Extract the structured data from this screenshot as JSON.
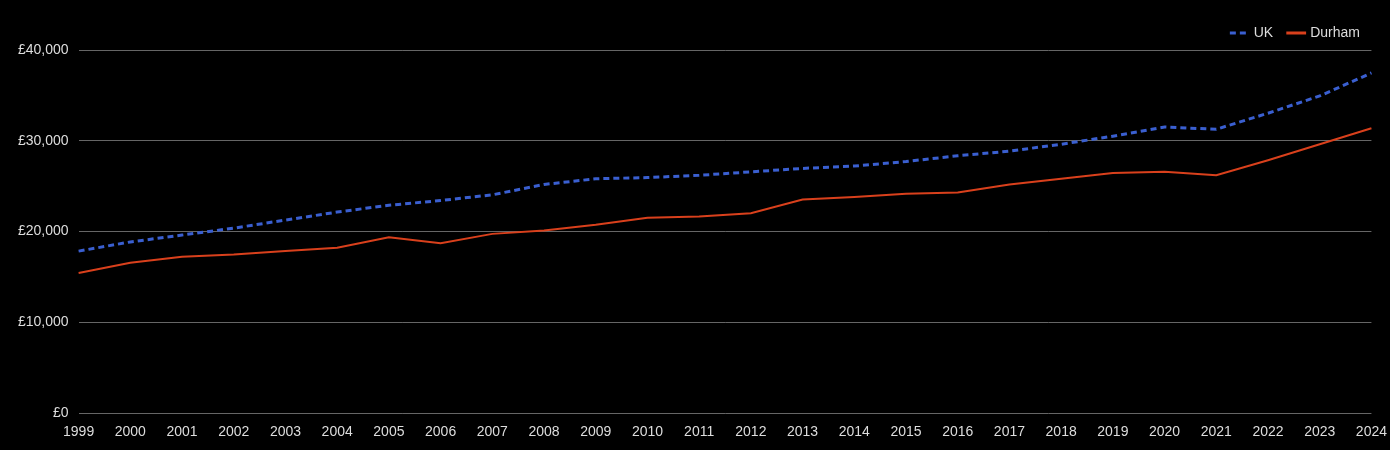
{
  "chart_data": {
    "type": "line",
    "categories": [
      "1999",
      "2000",
      "2001",
      "2002",
      "2003",
      "2004",
      "2005",
      "2006",
      "2007",
      "2008",
      "2009",
      "2010",
      "2011",
      "2012",
      "2013",
      "2014",
      "2015",
      "2016",
      "2017",
      "2018",
      "2019",
      "2020",
      "2021",
      "2022",
      "2023",
      "2024"
    ],
    "series": [
      {
        "name": "UK",
        "color": "#3a5fd0",
        "line_style": "dashed",
        "values": [
          17850,
          18860,
          19620,
          20380,
          21270,
          22150,
          22900,
          23420,
          24050,
          25190,
          25820,
          25950,
          26200,
          26580,
          26960,
          27220,
          27720,
          28350,
          28860,
          29620,
          30510,
          31520,
          31270,
          33040,
          34940,
          37470
        ]
      },
      {
        "name": "Durham",
        "color": "#d9401c",
        "line_style": "solid",
        "values": [
          15440,
          16580,
          17220,
          17470,
          17850,
          18230,
          19370,
          18730,
          19750,
          20130,
          20760,
          21520,
          21650,
          22030,
          23540,
          23800,
          24180,
          24300,
          25190,
          25820,
          26460,
          26580,
          26200,
          27850,
          29620,
          31390
        ]
      }
    ],
    "ylim": [
      0,
      40000
    ],
    "yticks": [
      {
        "value": 0,
        "label": "£0"
      },
      {
        "value": 10000,
        "label": "£10,000"
      },
      {
        "value": 20000,
        "label": "£20,000"
      },
      {
        "value": 30000,
        "label": "£30,000"
      },
      {
        "value": 40000,
        "label": "£40,000"
      }
    ],
    "grid": true,
    "legend": "top-right"
  }
}
